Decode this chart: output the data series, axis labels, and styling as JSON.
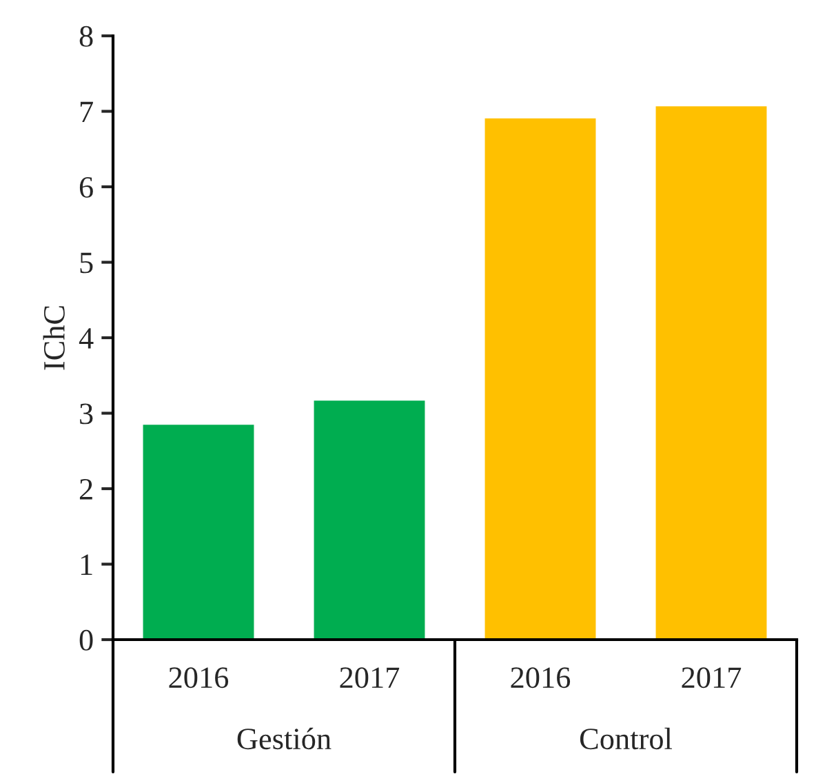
{
  "chart_data": {
    "type": "bar",
    "ylabel": "IChC",
    "categories": [
      "2016",
      "2017",
      "2016",
      "2017"
    ],
    "values": [
      2.86,
      3.18,
      6.92,
      7.08
    ],
    "colors": [
      "#00ad50",
      "#00ad50",
      "#ffc000",
      "#ffc000"
    ],
    "ylim": [
      0,
      8
    ],
    "yticks": [
      0,
      1,
      2,
      3,
      4,
      5,
      6,
      7,
      8
    ],
    "annotations": [
      "Gestión",
      "Control"
    ]
  }
}
